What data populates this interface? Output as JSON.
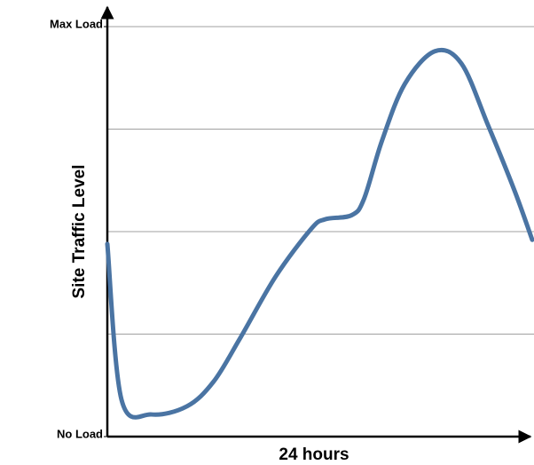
{
  "chart_data": {
    "type": "line",
    "x_label": "24 hours",
    "y_label": "Site Traffic Level",
    "x": [
      0,
      0.8,
      2.5,
      4.5,
      6,
      7.5,
      9.5,
      11.5,
      12.3,
      13.8,
      14.5,
      15.5,
      16.8,
      18.5,
      20,
      21.5,
      23,
      24
    ],
    "series": [
      {
        "color": "#4a74a3",
        "values": [
          47,
          9,
          5.4,
          7.4,
          13.4,
          24,
          39,
          50.6,
          53,
          54,
          58,
          72,
          86,
          94,
          91,
          76,
          60,
          48
        ]
      }
    ],
    "xlim": [
      0,
      24
    ],
    "ylim": [
      0,
      100
    ],
    "yticks": [
      {
        "value": 0,
        "label": "No Load"
      },
      {
        "value": 100,
        "label": "Max Load"
      }
    ],
    "gridlines": [
      25,
      50,
      75,
      100
    ],
    "grid": true
  }
}
